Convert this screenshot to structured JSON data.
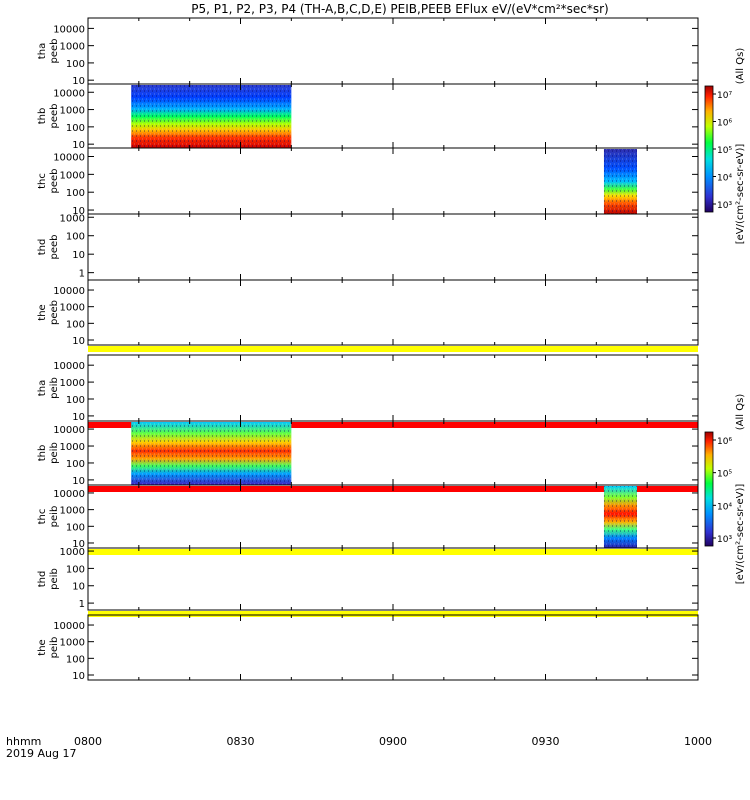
{
  "title": "P5, P1, P2, P3, P4 (TH-A,B,C,D,E) PEIB,PEEB EFlux eV/(eV*cm²*sec*sr)",
  "footer": {
    "time_label": "hhmm",
    "date_label": "2019 Aug 17"
  },
  "colorbars": [
    {
      "label_main": "[eV/(cm²-sec-sr-eV)]",
      "label_qual": "(All Qs)",
      "ticks": [
        "10⁷",
        "10⁶",
        "10⁵",
        "10⁴",
        "10³"
      ]
    },
    {
      "label_main": "[eV/(cm²-sec-sr-eV)]",
      "label_qual": "(All Qs)",
      "ticks": [
        "10⁶",
        "10⁵",
        "10⁴",
        "10³"
      ]
    }
  ],
  "chart_data": {
    "type": "heatmap",
    "x_ticks": [
      "0800",
      "0830",
      "0900",
      "0930",
      "1000"
    ],
    "x_tick_values_min": [
      0,
      30,
      60,
      90,
      120
    ],
    "x_range_min": [
      0,
      120
    ],
    "panels": [
      {
        "probe": "tha",
        "instrument": "peeb",
        "y_ticks": [
          "10000",
          "1000",
          "100",
          "10"
        ],
        "y_range": [
          6,
          40000
        ],
        "bands": [],
        "flags": []
      },
      {
        "probe": "thb",
        "instrument": "peeb",
        "y_ticks": [
          "10000",
          "1000",
          "100",
          "10"
        ],
        "y_range": [
          6,
          30000
        ],
        "bands": [
          {
            "x_start_min": 8.5,
            "x_end_min": 40,
            "spectrum": "peeb_thb"
          }
        ],
        "flags": []
      },
      {
        "probe": "thc",
        "instrument": "peeb",
        "y_ticks": [
          "10000",
          "1000",
          "100",
          "10"
        ],
        "y_range": [
          6,
          30000
        ],
        "bands": [
          {
            "x_start_min": 101.5,
            "x_end_min": 108,
            "spectrum": "peeb_thc"
          }
        ],
        "flags": []
      },
      {
        "probe": "thd",
        "instrument": "peeb",
        "y_ticks": [
          "1000",
          "100",
          "10",
          "1"
        ],
        "y_range": [
          0.4,
          1500
        ],
        "bands": [],
        "flags": []
      },
      {
        "probe": "the",
        "instrument": "peeb",
        "y_ticks": [
          "10000",
          "1000",
          "100",
          "10"
        ],
        "y_range": [
          5,
          40000
        ],
        "bands": [],
        "flags": [
          {
            "color": "#ffff00",
            "x_start_min": 0,
            "x_end_min": 120
          }
        ]
      },
      {
        "probe": "tha",
        "instrument": "peib",
        "y_ticks": [
          "10000",
          "1000",
          "100",
          "10"
        ],
        "y_range": [
          5,
          40000
        ],
        "bands": [],
        "flags": [
          {
            "color": "#ff0000",
            "x_start_min": 0,
            "x_end_min": 120
          }
        ]
      },
      {
        "probe": "thb",
        "instrument": "peib",
        "y_ticks": [
          "10000",
          "1000",
          "100",
          "10"
        ],
        "y_range": [
          5,
          30000
        ],
        "bands": [
          {
            "x_start_min": 8.5,
            "x_end_min": 40,
            "spectrum": "peib_thb"
          }
        ],
        "flags": [
          {
            "color": "#ff0000",
            "x_start_min": 0,
            "x_end_min": 120
          }
        ]
      },
      {
        "probe": "thc",
        "instrument": "peib",
        "y_ticks": [
          "10000",
          "1000",
          "100",
          "10"
        ],
        "y_range": [
          5,
          30000
        ],
        "bands": [
          {
            "x_start_min": 101.5,
            "x_end_min": 108,
            "spectrum": "peib_thc"
          }
        ],
        "flags": [
          {
            "color": "#ffff00",
            "x_start_min": 0,
            "x_end_min": 120
          }
        ]
      },
      {
        "probe": "thd",
        "instrument": "peib",
        "y_ticks": [
          "1000",
          "100",
          "10",
          "1"
        ],
        "y_range": [
          0.4,
          1500
        ],
        "bands": [],
        "flags": [
          {
            "color": "#ffff00",
            "x_start_min": 0,
            "x_end_min": 120
          }
        ]
      },
      {
        "probe": "the",
        "instrument": "peib",
        "y_ticks": [
          "10000",
          "1000",
          "100",
          "10"
        ],
        "y_range": [
          5,
          40000
        ],
        "bands": [],
        "flags": []
      }
    ]
  },
  "colors": {
    "flag_yellow": "#ffff00",
    "flag_red": "#ff0000"
  }
}
